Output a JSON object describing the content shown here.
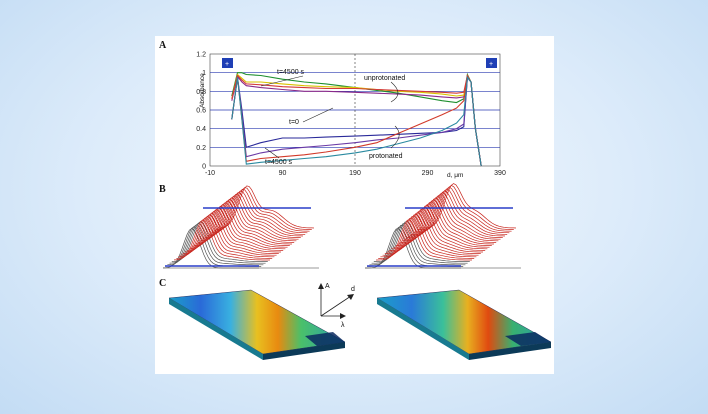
{
  "panels": {
    "a": "A",
    "b": "B",
    "c": "C"
  },
  "chart_data": [
    {
      "type": "line",
      "panel": "A",
      "ylabel": "Absorbance",
      "xlabel": "d, μm",
      "xlim": [
        -10,
        390
      ],
      "ylim": [
        0,
        1.2
      ],
      "x_ticks": [
        "-10",
        "90",
        "190",
        "290",
        "390"
      ],
      "y_ticks": [
        "0",
        "0.2",
        "0.4",
        "0.6",
        "0.8",
        "1",
        "1.2"
      ],
      "annotations": {
        "t_end_top": "t=4500 s",
        "t_zero": "t=0",
        "t_end_bottom": "t=4500 s",
        "unprotonated": "unprotonated",
        "protonated": "protonated",
        "left_marker": "+",
        "right_marker": "+"
      },
      "series": [
        {
          "group": "unprotonated",
          "color": "#1f8f2f",
          "x": [
            20,
            28,
            34,
            40,
            60,
            90,
            120,
            150,
            190,
            220,
            250,
            280,
            310,
            330,
            340,
            345,
            350,
            356,
            364
          ],
          "y": [
            0.75,
            1.0,
            1.0,
            0.98,
            0.97,
            0.93,
            0.9,
            0.88,
            0.84,
            0.81,
            0.78,
            0.74,
            0.7,
            0.68,
            0.72,
            0.98,
            0.9,
            0.4,
            0.0
          ]
        },
        {
          "group": "unprotonated",
          "color": "#8a2a8a",
          "x": [
            20,
            28,
            34,
            40,
            60,
            90,
            120,
            150,
            190,
            220,
            250,
            280,
            310,
            330,
            340,
            345,
            350,
            356,
            364
          ],
          "y": [
            0.7,
            0.96,
            0.9,
            0.86,
            0.84,
            0.82,
            0.8,
            0.8,
            0.79,
            0.78,
            0.77,
            0.76,
            0.74,
            0.73,
            0.74,
            0.96,
            0.9,
            0.4,
            0.0
          ]
        },
        {
          "group": "unprotonated",
          "color": "#d9c200",
          "x": [
            20,
            28,
            34,
            40,
            60,
            90,
            120,
            150,
            190,
            220,
            250,
            280,
            310,
            330,
            340,
            345,
            350,
            356,
            364
          ],
          "y": [
            0.72,
            0.98,
            0.94,
            0.9,
            0.9,
            0.88,
            0.86,
            0.85,
            0.84,
            0.82,
            0.8,
            0.79,
            0.77,
            0.75,
            0.76,
            0.97,
            0.9,
            0.4,
            0.0
          ]
        },
        {
          "group": "unprotonated",
          "color": "#d33a3a",
          "x": [
            20,
            28,
            34,
            40,
            60,
            90,
            120,
            150,
            190,
            220,
            250,
            280,
            310,
            330,
            340,
            345,
            350,
            356,
            364
          ],
          "y": [
            0.72,
            0.97,
            0.92,
            0.88,
            0.87,
            0.85,
            0.84,
            0.83,
            0.83,
            0.82,
            0.81,
            0.8,
            0.79,
            0.78,
            0.79,
            0.97,
            0.9,
            0.4,
            0.0
          ]
        },
        {
          "group": "protonated",
          "color": "#2a2a9a",
          "x": [
            20,
            28,
            34,
            40,
            60,
            90,
            120,
            150,
            190,
            220,
            250,
            280,
            310,
            330,
            340,
            345,
            350,
            356,
            364
          ],
          "y": [
            0.5,
            0.95,
            0.6,
            0.2,
            0.25,
            0.3,
            0.3,
            0.31,
            0.32,
            0.33,
            0.34,
            0.35,
            0.36,
            0.38,
            0.42,
            0.95,
            0.9,
            0.4,
            0.0
          ]
        },
        {
          "group": "protonated",
          "color": "#6a3aa6",
          "x": [
            20,
            28,
            34,
            40,
            60,
            90,
            120,
            150,
            190,
            220,
            250,
            280,
            310,
            330,
            340,
            345,
            350,
            356,
            364
          ],
          "y": [
            0.5,
            0.95,
            0.55,
            0.1,
            0.14,
            0.18,
            0.2,
            0.22,
            0.25,
            0.28,
            0.3,
            0.33,
            0.36,
            0.4,
            0.45,
            0.95,
            0.9,
            0.4,
            0.0
          ]
        },
        {
          "group": "protonated",
          "color": "#d23a2a",
          "x": [
            20,
            28,
            34,
            40,
            60,
            90,
            120,
            150,
            190,
            220,
            250,
            280,
            310,
            330,
            340,
            345,
            350,
            356,
            364
          ],
          "y": [
            0.5,
            0.95,
            0.5,
            0.05,
            0.08,
            0.1,
            0.12,
            0.15,
            0.2,
            0.25,
            0.35,
            0.45,
            0.55,
            0.62,
            0.7,
            0.95,
            0.9,
            0.4,
            0.0
          ]
        },
        {
          "group": "protonated",
          "color": "#2a8aa0",
          "x": [
            20,
            28,
            34,
            40,
            60,
            90,
            120,
            150,
            190,
            220,
            250,
            280,
            310,
            330,
            340,
            345,
            350,
            356,
            364
          ],
          "y": [
            0.5,
            0.95,
            0.5,
            0.02,
            0.04,
            0.06,
            0.08,
            0.1,
            0.14,
            0.18,
            0.24,
            0.3,
            0.38,
            0.46,
            0.55,
            0.95,
            0.9,
            0.4,
            0.0
          ]
        }
      ]
    },
    {
      "type": "area",
      "panel": "B",
      "subplots": 2,
      "description_colors": {
        "traces": "#c8271f",
        "highlight": "#2a3ec8",
        "baseline": "#2a3ec8"
      }
    },
    {
      "type": "heatmap",
      "panel": "C",
      "subplots": 2,
      "axes_legend": {
        "a": "A",
        "d": "d",
        "lambda": "λ"
      }
    }
  ]
}
